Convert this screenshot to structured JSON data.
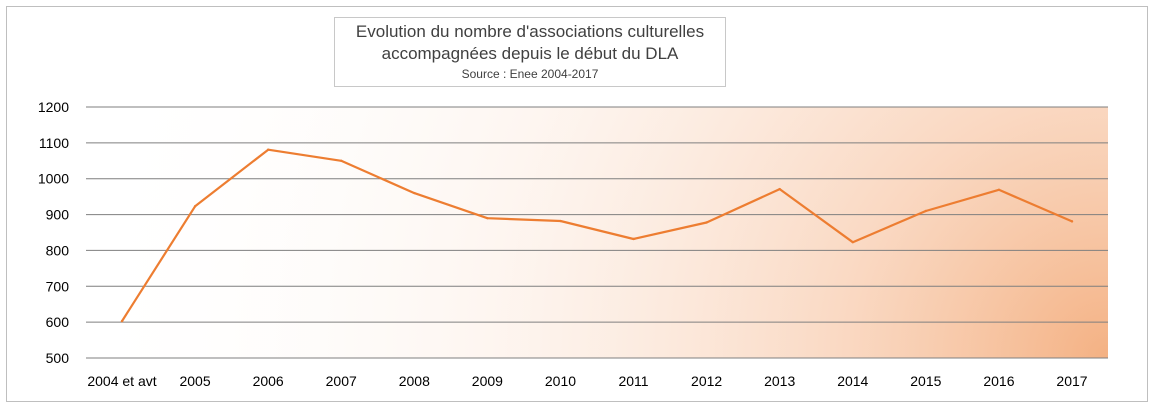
{
  "chart_data": {
    "type": "line",
    "title_line1": "Evolution du nombre d'associations culturelles",
    "title_line2": "accompagnées depuis le début du DLA",
    "subtitle": "Source : Enee 2004-2017",
    "xlabel": "",
    "ylabel": "",
    "ylim": [
      500,
      1200
    ],
    "yticks": [
      "1200",
      "1100",
      "1000",
      "900",
      "800",
      "700",
      "600",
      "500"
    ],
    "categories": [
      "2004 et avt",
      "2005",
      "2006",
      "2007",
      "2008",
      "2009",
      "2010",
      "2011",
      "2012",
      "2013",
      "2014",
      "2015",
      "2016",
      "2017"
    ],
    "series": [
      {
        "values": [
          603,
          923,
          1081,
          1050,
          960,
          890,
          882,
          832,
          878,
          971,
          823,
          910,
          969,
          881
        ]
      }
    ],
    "grid": true,
    "legend": "none",
    "colors": {
      "line": "#ED7D31",
      "grid": "#7f7f7f",
      "text": "#000000",
      "gradient": "#F4B183"
    }
  }
}
